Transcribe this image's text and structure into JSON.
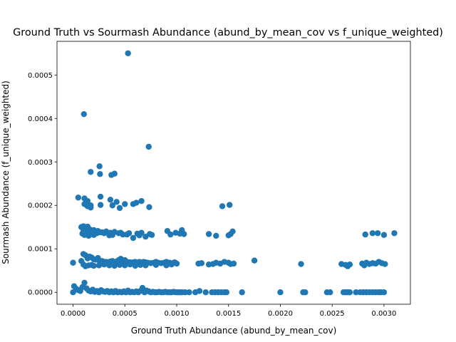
{
  "chart_data": {
    "type": "scatter",
    "title": "Ground Truth vs Sourmash Abundance (abund_by_mean_cov vs f_unique_weighted)",
    "xlabel": "Ground Truth Abundance (abund_by_mean_cov)",
    "ylabel": "Sourmash Abundance (f_unique_weighted)",
    "xlim": [
      -0.000155,
      0.003255
    ],
    "ylim": [
      -2.75e-05,
      0.0005775
    ],
    "x_ticks": [
      0.0,
      0.0005,
      0.001,
      0.0015,
      0.002,
      0.0025,
      0.003
    ],
    "x_tick_labels": [
      "0.0000",
      "0.0005",
      "0.0010",
      "0.0015",
      "0.0020",
      "0.0025",
      "0.0030"
    ],
    "y_ticks": [
      0.0,
      0.0001,
      0.0002,
      0.0003,
      0.0004,
      0.0005
    ],
    "y_tick_labels": [
      "0.0000",
      "0.0001",
      "0.0002",
      "0.0003",
      "0.0004",
      "0.0005"
    ],
    "grid": false,
    "legend": "none",
    "marker_color": "#1f77b4",
    "points": [
      [
        0.00053,
        0.00055
      ],
      [
        0.000105,
        0.00041
      ],
      [
        0.00073,
        0.000335
      ],
      [
        0.000255,
        0.00029
      ],
      [
        0.00017,
        0.000277
      ],
      [
        0.00026,
        0.000272
      ],
      [
        0.00037,
        0.00027
      ],
      [
        0.0004,
        0.000273
      ],
      [
        5e-05,
        0.000218
      ],
      [
        0.00011,
        0.000216
      ],
      [
        0.000265,
        0.00022
      ],
      [
        0.00036,
        0.000213
      ],
      [
        0.00042,
        0.000208
      ],
      [
        0.0005,
        0.000203
      ],
      [
        0.00058,
        0.000203
      ],
      [
        0.00061,
        0.000206
      ],
      [
        0.00066,
        0.00021
      ],
      [
        0.000735,
        0.000196
      ],
      [
        0.00011,
        0.000203
      ],
      [
        0.00017,
        0.0002
      ],
      [
        0.000265,
        0.000201
      ],
      [
        0.00038,
        0.0002
      ],
      [
        0.00045,
        0.000194
      ],
      [
        0.00014,
        0.00021
      ],
      [
        0.00017,
        0.000195
      ],
      [
        0.00014,
        0.000198
      ],
      [
        0.00144,
        0.000198
      ],
      [
        0.00151,
        0.000201
      ],
      [
        8e-05,
        0.00015
      ],
      [
        0.0001,
        0.000152
      ],
      [
        0.00012,
        0.000148
      ],
      [
        0.00014,
        0.000151
      ],
      [
        0.00016,
        0.000145
      ],
      [
        0.0001,
        0.00014
      ],
      [
        0.00012,
        0.000138
      ],
      [
        0.00014,
        0.000142
      ],
      [
        0.00018,
        0.00014
      ],
      [
        0.0002,
        0.000143
      ],
      [
        0.00024,
        0.000141
      ],
      [
        0.00028,
        0.000138
      ],
      [
        0.00032,
        0.00014
      ],
      [
        0.00036,
        0.000137
      ],
      [
        0.0004,
        0.000139
      ],
      [
        0.00044,
        0.000136
      ],
      [
        0.00048,
        0.000133
      ],
      [
        0.00052,
        0.000133
      ],
      [
        0.00058,
        0.000125
      ],
      [
        0.00062,
        0.000135
      ],
      [
        0.00066,
        0.000137
      ],
      [
        0.0007,
        0.000128
      ],
      [
        0.00074,
        0.000134
      ],
      [
        0.00076,
        0.000132
      ],
      [
        9e-05,
        0.000135
      ],
      [
        0.00011,
        0.000132
      ],
      [
        0.00013,
        0.000134
      ],
      [
        0.00015,
        0.00013
      ],
      [
        0.00017,
        0.000135
      ],
      [
        0.0002,
        0.000132
      ],
      [
        0.00023,
        0.000136
      ],
      [
        0.00026,
        0.000138
      ],
      [
        0.0003,
        0.000136
      ],
      [
        0.00035,
        0.000131
      ],
      [
        0.00038,
        0.000132
      ],
      [
        0.00046,
        0.000137
      ],
      [
        0.00054,
        0.000136
      ],
      [
        0.00064,
        0.000131
      ],
      [
        0.00091,
        0.000141
      ],
      [
        0.00094,
        0.000133
      ],
      [
        0.00099,
        0.000137
      ],
      [
        0.00103,
        0.000135
      ],
      [
        0.00105,
        0.000143
      ],
      [
        0.00107,
        0.000134
      ],
      [
        0.00131,
        0.000134
      ],
      [
        0.00138,
        0.00013
      ],
      [
        0.0015,
        0.000131
      ],
      [
        0.00152,
        0.000134
      ],
      [
        0.00154,
        0.00014
      ],
      [
        0.00282,
        0.000133
      ],
      [
        0.00289,
        0.000136
      ],
      [
        0.00294,
        0.000136
      ],
      [
        0.003,
        0.000132
      ],
      [
        0.0031,
        0.000136
      ],
      [
        0.0,
        6.8e-05
      ],
      [
        8e-05,
        7.2e-05
      ],
      [
        0.0001,
        8.8e-05
      ],
      [
        0.00012,
        8.5e-05
      ],
      [
        0.00014,
        7.8e-05
      ],
      [
        0.00016,
        8.2e-05
      ],
      [
        0.00018,
        8e-05
      ],
      [
        0.0002,
        7.6e-05
      ],
      [
        0.00022,
        7.5e-05
      ],
      [
        0.00024,
        7.9e-05
      ],
      [
        0.00026,
        7e-05
      ],
      [
        0.00028,
        7.2e-05
      ],
      [
        0.0003,
        7e-05
      ],
      [
        0.00032,
        7e-05
      ],
      [
        0.00034,
        6.9e-05
      ],
      [
        0.00036,
        7.1e-05
      ],
      [
        0.00038,
        7.2e-05
      ],
      [
        0.0004,
        6.8e-05
      ],
      [
        0.00042,
        7.1e-05
      ],
      [
        0.00044,
        7.4e-05
      ],
      [
        0.00046,
        7.7e-05
      ],
      [
        0.00048,
        7.2e-05
      ],
      [
        0.0005,
        7.4e-05
      ],
      [
        0.00052,
        7e-05
      ],
      [
        0.00055,
        6.9e-05
      ],
      [
        0.00058,
        6.9e-05
      ],
      [
        0.0006,
        7e-05
      ],
      [
        0.00062,
        6.7e-05
      ],
      [
        0.00064,
        7e-05
      ],
      [
        0.00066,
        6.8e-05
      ],
      [
        0.00068,
        7e-05
      ],
      [
        0.0007,
        6.9e-05
      ],
      [
        0.00072,
        6.8e-05
      ],
      [
        0.00075,
        6.7e-05
      ],
      [
        0.00078,
        6.8e-05
      ],
      [
        0.0008,
        7e-05
      ],
      [
        0.00082,
        6.8e-05
      ],
      [
        0.00085,
        6.7e-05
      ],
      [
        0.00088,
        6.8e-05
      ],
      [
        0.0009,
        7e-05
      ],
      [
        0.00093,
        6.8e-05
      ],
      [
        0.00096,
        6.7e-05
      ],
      [
        0.00098,
        6.9e-05
      ],
      [
        0.001,
        6.6e-05
      ],
      [
        0.0001,
        6.4e-05
      ],
      [
        0.00012,
        6e-05
      ],
      [
        0.00015,
        6.2e-05
      ],
      [
        0.00018,
        6.3e-05
      ],
      [
        0.0002,
        6.1e-05
      ],
      [
        0.00025,
        6.2e-05
      ],
      [
        0.0003,
        6.4e-05
      ],
      [
        0.00035,
        6.2e-05
      ],
      [
        0.0004,
        6.1e-05
      ],
      [
        0.00045,
        6.3e-05
      ],
      [
        0.0005,
        6.2e-05
      ],
      [
        0.00055,
        6.4e-05
      ],
      [
        0.0006,
        6.1e-05
      ],
      [
        0.00065,
        6.3e-05
      ],
      [
        0.0007,
        6.2e-05
      ],
      [
        0.0008,
        6.3e-05
      ],
      [
        0.0009,
        6.2e-05
      ],
      [
        0.00095,
        6.4e-05
      ],
      [
        0.00121,
        6.6e-05
      ],
      [
        0.00124,
        6.7e-05
      ],
      [
        0.00131,
        6.4e-05
      ],
      [
        0.00135,
        6.5e-05
      ],
      [
        0.00138,
        6.8e-05
      ],
      [
        0.00142,
        6.6e-05
      ],
      [
        0.00146,
        7e-05
      ],
      [
        0.0015,
        6.8e-05
      ],
      [
        0.00152,
        6.5e-05
      ],
      [
        0.00155,
        6.6e-05
      ],
      [
        0.00175,
        7.3e-05
      ],
      [
        0.0022,
        6.5e-05
      ],
      [
        0.00259,
        6.5e-05
      ],
      [
        0.00263,
        6.3e-05
      ],
      [
        0.00265,
        6e-05
      ],
      [
        0.00267,
        6.4e-05
      ],
      [
        0.00279,
        6.6e-05
      ],
      [
        0.00281,
        6.2e-05
      ],
      [
        0.00283,
        6.8e-05
      ],
      [
        0.00286,
        6.5e-05
      ],
      [
        0.00289,
        6.7e-05
      ],
      [
        0.00292,
        6.6e-05
      ],
      [
        0.00295,
        7e-05
      ],
      [
        0.00298,
        6.7e-05
      ],
      [
        0.00301,
        6.5e-05
      ],
      [
        0.0,
        0.0
      ],
      [
        1e-05,
        1.4e-05
      ],
      [
        3e-05,
        8e-06
      ],
      [
        5e-05,
        5e-06
      ],
      [
        7e-05,
        3e-06
      ],
      [
        9e-05,
        1.2e-05
      ],
      [
        0.00011,
        2.2e-05
      ],
      [
        0.00013,
        9e-06
      ],
      [
        0.00015,
        4e-06
      ],
      [
        0.00017,
        2e-06
      ],
      [
        0.00019,
        6e-06
      ],
      [
        0.00021,
        1e-06
      ],
      [
        0.00023,
        3e-06
      ],
      [
        0.00025,
        0.0
      ],
      [
        0.00027,
        5e-06
      ],
      [
        0.00029,
        2e-06
      ],
      [
        0.00031,
        1e-06
      ],
      [
        0.00033,
        3e-06
      ],
      [
        0.00035,
        0.0
      ],
      [
        0.00037,
        2e-06
      ],
      [
        0.00039,
        0.0
      ],
      [
        0.00041,
        3e-06
      ],
      [
        0.00043,
        0.0
      ],
      [
        0.00045,
        1e-06
      ],
      [
        0.00047,
        0.0
      ],
      [
        0.00049,
        2e-06
      ],
      [
        0.00051,
        0.0
      ],
      [
        0.00053,
        4e-06
      ],
      [
        0.00055,
        0.0
      ],
      [
        0.00057,
        1e-06
      ],
      [
        0.00059,
        0.0
      ],
      [
        0.00061,
        2e-06
      ],
      [
        0.00063,
        0.0
      ],
      [
        0.00065,
        3e-06
      ],
      [
        0.00067,
        1e-05
      ],
      [
        0.00069,
        0.0
      ],
      [
        0.00071,
        4e-06
      ],
      [
        0.00073,
        2e-06
      ],
      [
        0.00075,
        0.0
      ],
      [
        0.00077,
        1e-06
      ],
      [
        0.00079,
        0.0
      ],
      [
        0.00081,
        0.0
      ],
      [
        0.00083,
        1e-06
      ],
      [
        0.00085,
        0.0
      ],
      [
        0.00087,
        0.0
      ],
      [
        0.00089,
        1e-06
      ],
      [
        0.00091,
        0.0
      ],
      [
        0.00093,
        0.0
      ],
      [
        0.00095,
        0.0
      ],
      [
        0.00097,
        1e-06
      ],
      [
        0.00099,
        0.0
      ],
      [
        0.00101,
        0.0
      ],
      [
        0.00103,
        0.0
      ],
      [
        0.00105,
        0.0
      ],
      [
        0.00108,
        0.0
      ],
      [
        0.00112,
        0.0
      ],
      [
        0.00118,
        0.0
      ],
      [
        0.00122,
        3e-06
      ],
      [
        0.00128,
        0.0
      ],
      [
        0.00134,
        0.0
      ],
      [
        0.00137,
        0.0
      ],
      [
        0.0014,
        0.0
      ],
      [
        0.00143,
        0.0
      ],
      [
        0.00146,
        0.0
      ],
      [
        0.00148,
        0.0
      ],
      [
        0.00163,
        0.0
      ],
      [
        0.002,
        0.0
      ],
      [
        0.00222,
        0.0
      ],
      [
        0.00224,
        0.0
      ],
      [
        0.00245,
        0.0
      ],
      [
        0.00248,
        0.0
      ],
      [
        0.00261,
        0.0
      ],
      [
        0.00263,
        0.0
      ],
      [
        0.00265,
        0.0
      ],
      [
        0.00267,
        0.0
      ],
      [
        0.00273,
        0.0
      ],
      [
        0.00277,
        0.0
      ],
      [
        0.0028,
        0.0
      ],
      [
        0.00283,
        0.0
      ],
      [
        0.00286,
        0.0
      ],
      [
        0.00289,
        0.0
      ],
      [
        0.00292,
        0.0
      ],
      [
        0.00295,
        0.0
      ],
      [
        0.00297,
        0.0
      ],
      [
        0.003,
        0.0
      ]
    ]
  }
}
